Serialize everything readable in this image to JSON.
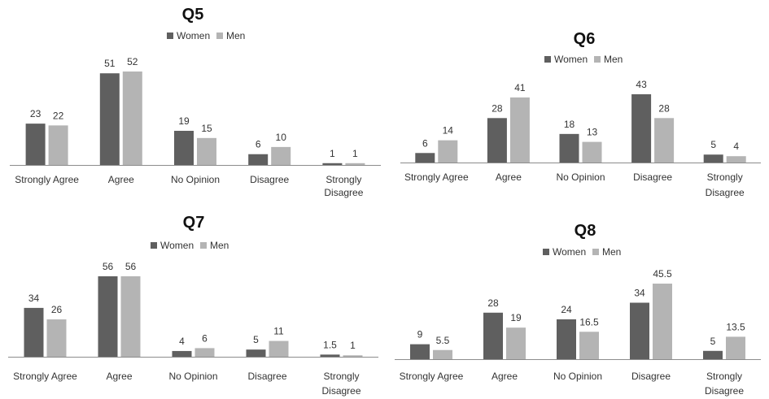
{
  "colors": {
    "women": "#5f5f5f",
    "men": "#b4b4b4",
    "axis": "#8c8c8c"
  },
  "chart_data": [
    {
      "type": "bar",
      "title": "Q5",
      "categories": [
        "Strongly Agree",
        "Agree",
        "No Opinion",
        "Disagree",
        "Strongly Disagree"
      ],
      "series": [
        {
          "name": "Women",
          "values": [
            23,
            51,
            19,
            6,
            1
          ]
        },
        {
          "name": "Men",
          "values": [
            22,
            52,
            15,
            10,
            1
          ]
        }
      ],
      "value_labels": [
        [
          "23",
          "51",
          "19",
          "6",
          "1"
        ],
        [
          "22",
          "52",
          "15",
          "10",
          "1"
        ]
      ],
      "ylim": [
        0,
        60
      ],
      "grid": false,
      "legend": "top-center"
    },
    {
      "type": "bar",
      "title": "Q6",
      "categories": [
        "Strongly Agree",
        "Agree",
        "No Opinion",
        "Disagree",
        "Strongly Disagree"
      ],
      "series": [
        {
          "name": "Women",
          "values": [
            6,
            28,
            18,
            43,
            5
          ]
        },
        {
          "name": "Men",
          "values": [
            14,
            41,
            13,
            28,
            4
          ]
        }
      ],
      "value_labels": [
        [
          "6",
          "28",
          "18",
          "43",
          "5"
        ],
        [
          "14",
          "41",
          "13",
          "28",
          "4"
        ]
      ],
      "ylim": [
        0,
        50
      ],
      "grid": false,
      "legend": "top-center"
    },
    {
      "type": "bar",
      "title": "Q7",
      "categories": [
        "Strongly Agree",
        "Agree",
        "No Opinion",
        "Disagree",
        "Strongly Disagree"
      ],
      "series": [
        {
          "name": "Women",
          "values": [
            34,
            56,
            4,
            5,
            1.5
          ]
        },
        {
          "name": "Men",
          "values": [
            26,
            56,
            6,
            11,
            1
          ]
        }
      ],
      "value_labels": [
        [
          "34",
          "56",
          "4",
          "5",
          "1.5"
        ],
        [
          "26",
          "56",
          "6",
          "11",
          "1"
        ]
      ],
      "ylim": [
        0,
        60
      ],
      "grid": false,
      "legend": "top-center"
    },
    {
      "type": "bar",
      "title": "Q8",
      "categories": [
        "Strongly Agree",
        "Agree",
        "No Opinion",
        "Disagree",
        "Strongly Disagree"
      ],
      "series": [
        {
          "name": "Women",
          "values": [
            9,
            28,
            24,
            34,
            5
          ]
        },
        {
          "name": "Men",
          "values": [
            5.5,
            19,
            16.5,
            45.5,
            13.5
          ]
        }
      ],
      "value_labels": [
        [
          "9",
          "28",
          "24",
          "34",
          "5"
        ],
        [
          "5.5",
          "19",
          "16.5",
          "45.5",
          "13.5"
        ]
      ],
      "ylim": [
        0,
        50
      ],
      "grid": false,
      "legend": "top-center"
    }
  ]
}
